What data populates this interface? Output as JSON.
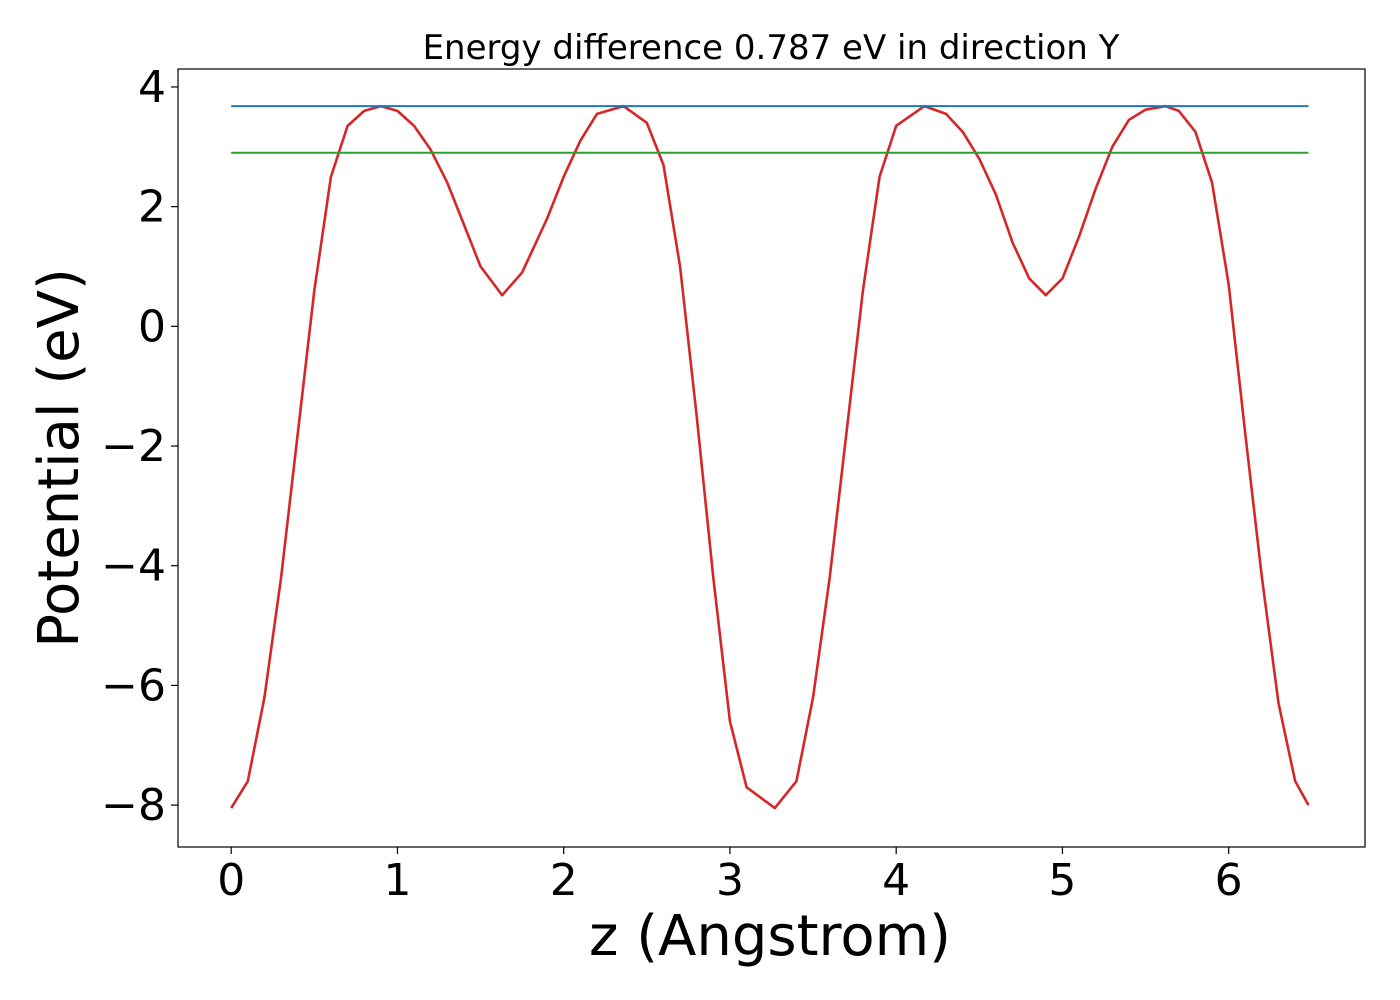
{
  "chart_data": {
    "type": "line",
    "title": "Energy difference 0.787 eV in direction Y",
    "xlabel": "z (Angstrom)",
    "ylabel": "Potential (eV)",
    "xlim": [
      -0.32,
      6.82
    ],
    "ylim": [
      -8.7,
      4.3
    ],
    "xticks": [
      0,
      1,
      2,
      3,
      4,
      5,
      6
    ],
    "xtick_labels": [
      "0",
      "1",
      "2",
      "3",
      "4",
      "5",
      "6"
    ],
    "yticks": [
      4,
      2,
      0,
      -2,
      -4,
      -6,
      -8
    ],
    "ytick_labels": [
      "4",
      "2",
      "0",
      "−2",
      "−4",
      "−6",
      "−8"
    ],
    "grid": false,
    "series": [
      {
        "color": "#d62728",
        "x": [
          0.0,
          0.1,
          0.2,
          0.3,
          0.4,
          0.5,
          0.6,
          0.7,
          0.8,
          0.9,
          1.0,
          1.1,
          1.2,
          1.3,
          1.4,
          1.5,
          1.63,
          1.75,
          1.9,
          2.0,
          2.1,
          2.2,
          2.36,
          2.5,
          2.6,
          2.7,
          2.8,
          2.9,
          3.0,
          3.1,
          3.27,
          3.4,
          3.5,
          3.6,
          3.7,
          3.8,
          3.9,
          4.0,
          4.17,
          4.3,
          4.4,
          4.5,
          4.6,
          4.7,
          4.8,
          4.9,
          5.0,
          5.1,
          5.2,
          5.3,
          5.4,
          5.5,
          5.62,
          5.7,
          5.8,
          5.9,
          6.0,
          6.1,
          6.2,
          6.3,
          6.4,
          6.48
        ],
        "y": [
          -8.05,
          -7.6,
          -6.2,
          -4.2,
          -1.8,
          0.6,
          2.5,
          3.35,
          3.6,
          3.68,
          3.6,
          3.35,
          2.95,
          2.4,
          1.7,
          1.0,
          0.52,
          0.9,
          1.8,
          2.5,
          3.1,
          3.55,
          3.68,
          3.4,
          2.7,
          1.0,
          -1.5,
          -4.2,
          -6.6,
          -7.7,
          -8.05,
          -7.6,
          -6.2,
          -4.2,
          -1.8,
          0.6,
          2.5,
          3.35,
          3.68,
          3.55,
          3.25,
          2.8,
          2.2,
          1.4,
          0.8,
          0.52,
          0.8,
          1.5,
          2.3,
          3.0,
          3.45,
          3.62,
          3.68,
          3.6,
          3.25,
          2.4,
          0.7,
          -1.8,
          -4.2,
          -6.3,
          -7.6,
          -8.0
        ]
      },
      {
        "color": "#1f77b4",
        "x": [
          0.0,
          6.48
        ],
        "y": [
          3.68,
          3.68
        ]
      },
      {
        "color": "#2ca02c",
        "x": [
          0.0,
          6.48
        ],
        "y": [
          2.9,
          2.9
        ]
      }
    ]
  }
}
